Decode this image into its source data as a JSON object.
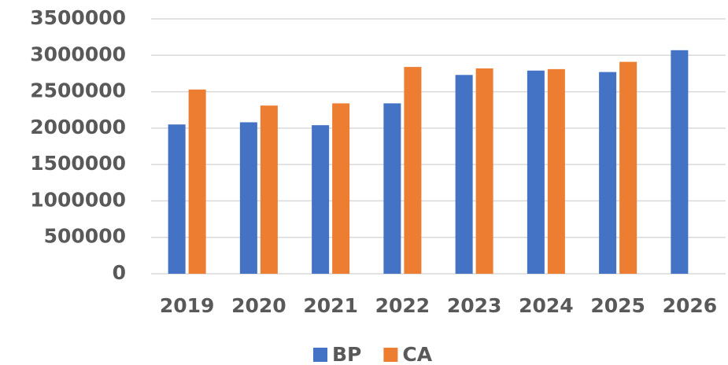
{
  "chart_data": {
    "type": "bar",
    "categories": [
      "2019",
      "2020",
      "2021",
      "2022",
      "2023",
      "2024",
      "2025",
      "2026"
    ],
    "series": [
      {
        "name": "BP",
        "color": "#4472c4",
        "values": [
          2050000,
          2080000,
          2040000,
          2340000,
          2730000,
          2790000,
          2770000,
          3070000
        ]
      },
      {
        "name": "CA",
        "color": "#ed7d31",
        "values": [
          2530000,
          2310000,
          2340000,
          2840000,
          2820000,
          2810000,
          2910000,
          null
        ]
      }
    ],
    "ylim": [
      0,
      3500000
    ],
    "yticks": [
      0,
      500000,
      1000000,
      1500000,
      2000000,
      2500000,
      3000000,
      3500000
    ],
    "grid": true,
    "legend": "bottom"
  }
}
